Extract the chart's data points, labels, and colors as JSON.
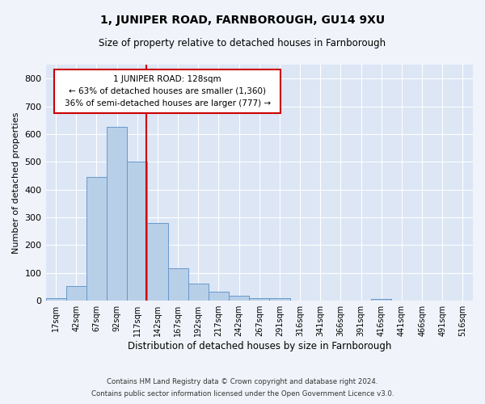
{
  "title1": "1, JUNIPER ROAD, FARNBOROUGH, GU14 9XU",
  "title2": "Size of property relative to detached houses in Farnborough",
  "xlabel": "Distribution of detached houses by size in Farnborough",
  "ylabel": "Number of detached properties",
  "bin_labels": [
    "17sqm",
    "42sqm",
    "67sqm",
    "92sqm",
    "117sqm",
    "142sqm",
    "167sqm",
    "192sqm",
    "217sqm",
    "242sqm",
    "267sqm",
    "291sqm",
    "316sqm",
    "341sqm",
    "366sqm",
    "391sqm",
    "416sqm",
    "441sqm",
    "466sqm",
    "491sqm",
    "516sqm"
  ],
  "bar_heights": [
    10,
    52,
    447,
    625,
    500,
    280,
    118,
    63,
    34,
    18,
    10,
    8,
    0,
    0,
    0,
    0,
    7,
    0,
    0,
    0,
    0
  ],
  "bar_color": "#b8cfe8",
  "bar_edge_color": "#6699cc",
  "vline_color": "#cc0000",
  "annotation_text": "1 JUNIPER ROAD: 128sqm\n← 63% of detached houses are smaller (1,360)\n36% of semi-detached houses are larger (777) →",
  "annotation_box_color": "#ffffff",
  "annotation_box_edge_color": "#cc0000",
  "ylim": [
    0,
    850
  ],
  "yticks": [
    0,
    100,
    200,
    300,
    400,
    500,
    600,
    700,
    800
  ],
  "plot_bg_color": "#dce6f5",
  "fig_bg_color": "#f0f4fa",
  "footer1": "Contains HM Land Registry data © Crown copyright and database right 2024.",
  "footer2": "Contains public sector information licensed under the Open Government Licence v3.0."
}
